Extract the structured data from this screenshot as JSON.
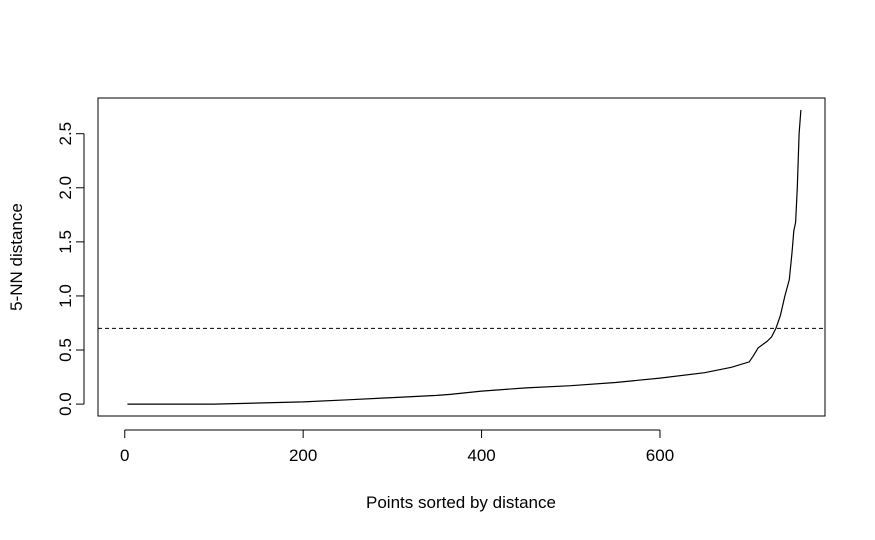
{
  "chart_data": {
    "type": "line",
    "title": "",
    "xlabel": "Points sorted by distance",
    "ylabel": "5-NN distance",
    "xlim": [
      -30,
      785
    ],
    "ylim": [
      -0.11,
      2.83
    ],
    "x_ticks": [
      0,
      200,
      400,
      600
    ],
    "x_tick_labels": [
      "0",
      "200",
      "400",
      "600"
    ],
    "y_ticks": [
      0.0,
      0.5,
      1.0,
      1.5,
      2.0,
      2.5
    ],
    "y_tick_labels": [
      "0.0",
      "0.5",
      "1.0",
      "1.5",
      "2.0",
      "2.5"
    ],
    "grid": false,
    "legend": "none",
    "series": [
      {
        "x": [
          3,
          50,
          100,
          150,
          200,
          250,
          300,
          350,
          365,
          400,
          450,
          500,
          550,
          600,
          650,
          680,
          700,
          705,
          710,
          720,
          725,
          730,
          735,
          740,
          745,
          748,
          750,
          752,
          754,
          756,
          758
        ],
        "y": [
          0.0,
          0.0,
          0.0,
          0.01,
          0.02,
          0.04,
          0.06,
          0.08,
          0.09,
          0.12,
          0.15,
          0.17,
          0.2,
          0.24,
          0.29,
          0.34,
          0.39,
          0.45,
          0.52,
          0.58,
          0.62,
          0.7,
          0.82,
          1.0,
          1.15,
          1.4,
          1.6,
          1.68,
          2.0,
          2.5,
          2.72
        ],
        "color": "#000000"
      }
    ],
    "reference_lines": [
      {
        "orientation": "horizontal",
        "y": 0.7,
        "style": "dashed",
        "color": "#000000"
      }
    ]
  }
}
